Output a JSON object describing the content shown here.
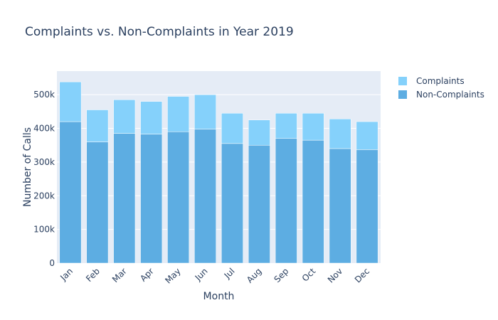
{
  "chart_data": {
    "type": "bar",
    "stacked": true,
    "title": "Complaints vs. Non-Complaints in Year 2019",
    "xlabel": "Month",
    "ylabel": "Number of Calls",
    "categories": [
      "Jan",
      "Feb",
      "Mar",
      "Apr",
      "May",
      "Jun",
      "Jul",
      "Aug",
      "Sep",
      "Oct",
      "Nov",
      "Dec"
    ],
    "series": [
      {
        "name": "Non-Complaints",
        "color": "#5dade2",
        "values": [
          420000,
          360000,
          385000,
          383000,
          390000,
          398000,
          355000,
          350000,
          370000,
          365000,
          340000,
          337000
        ]
      },
      {
        "name": "Complaints",
        "color": "#85d1fb",
        "values": [
          118000,
          95000,
          100000,
          97000,
          105000,
          102000,
          90000,
          75000,
          75000,
          80000,
          88000,
          83000
        ]
      }
    ],
    "ylim": [
      0,
      570000
    ],
    "yticks": [
      {
        "value": 0,
        "label": "0"
      },
      {
        "value": 100000,
        "label": "100k"
      },
      {
        "value": 200000,
        "label": "200k"
      },
      {
        "value": 300000,
        "label": "300k"
      },
      {
        "value": 400000,
        "label": "400k"
      },
      {
        "value": 500000,
        "label": "500k"
      }
    ],
    "legend": {
      "placement": "top-right",
      "order": [
        "Complaints",
        "Non-Complaints"
      ]
    },
    "grid": true,
    "plot_background": "#e5ecf6",
    "text_color": "#2a3f5f"
  }
}
